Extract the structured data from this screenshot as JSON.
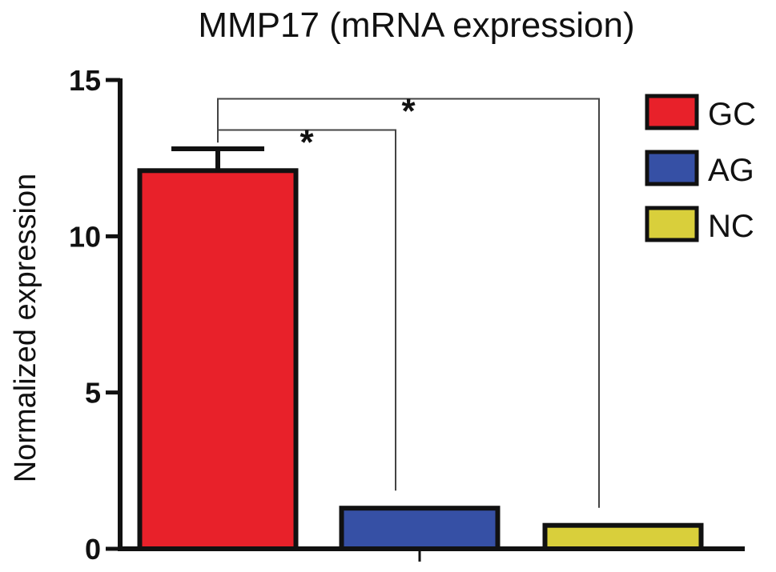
{
  "chart_data": {
    "type": "bar",
    "title": "MMP17 (mRNA expression)",
    "xlabel": "",
    "ylabel": "Normalized expression",
    "ylim": [
      0,
      15
    ],
    "yticks": [
      0,
      5,
      10,
      15
    ],
    "grid": false,
    "legend_position": "top-right",
    "categories": [
      "GC",
      "AG",
      "NC"
    ],
    "values": [
      12.1,
      1.3,
      0.75
    ],
    "error_upper": [
      0.7,
      0.05,
      0.05
    ],
    "colors": [
      "#e8212a",
      "#3650a5",
      "#d9cf3b"
    ],
    "legend": [
      "GC",
      "AG",
      "NC"
    ],
    "significance": [
      {
        "from": "GC",
        "to": "AG",
        "label": "*",
        "level": 13.4
      },
      {
        "from": "GC",
        "to": "NC",
        "label": "*",
        "level": 14.4
      }
    ]
  }
}
